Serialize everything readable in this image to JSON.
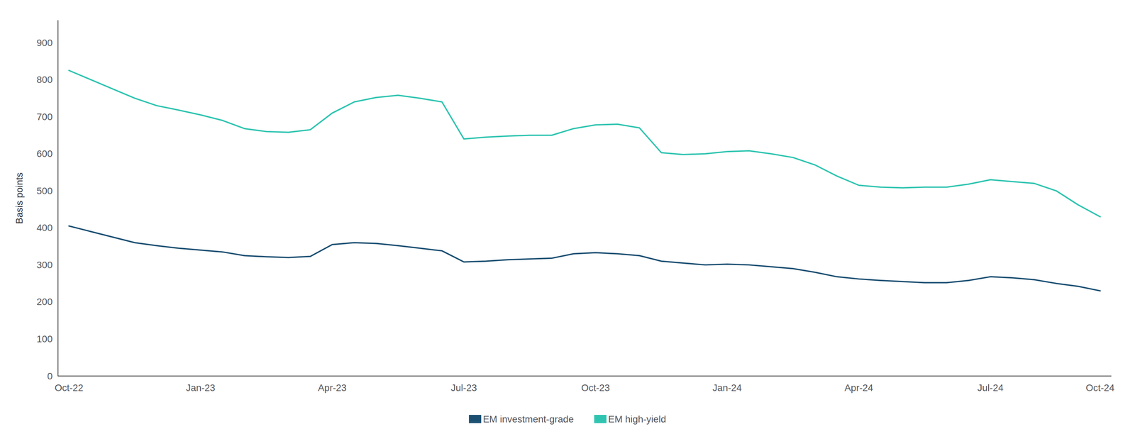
{
  "chart_data": {
    "type": "line",
    "ylabel": "Basis points",
    "categories": [
      "Oct-22",
      null,
      null,
      null,
      null,
      null,
      "Jan-23",
      null,
      null,
      null,
      null,
      null,
      "Apr-23",
      null,
      null,
      null,
      null,
      null,
      "Jul-23",
      null,
      null,
      null,
      null,
      null,
      "Oct-23",
      null,
      null,
      null,
      null,
      null,
      "Jan-24",
      null,
      null,
      null,
      null,
      null,
      "Apr-24",
      null,
      null,
      null,
      null,
      null,
      "Jul-24",
      null,
      null,
      null,
      null,
      "Oct-24"
    ],
    "series": [
      {
        "name": "EM investment-grade",
        "color": "#1b4f72",
        "values": [
          405,
          390,
          375,
          360,
          352,
          345,
          340,
          335,
          325,
          322,
          320,
          323,
          355,
          360,
          358,
          352,
          345,
          338,
          308,
          310,
          314,
          316,
          318,
          330,
          333,
          330,
          325,
          310,
          305,
          300,
          302,
          300,
          295,
          290,
          280,
          268,
          262,
          258,
          255,
          252,
          252,
          258,
          268,
          265,
          260,
          250,
          242,
          230
        ]
      },
      {
        "name": "EM high-yield",
        "color": "#2ec4b0",
        "values": [
          825,
          800,
          775,
          750,
          730,
          718,
          705,
          690,
          668,
          660,
          658,
          665,
          710,
          740,
          752,
          758,
          750,
          740,
          640,
          645,
          648,
          650,
          650,
          668,
          678,
          680,
          670,
          603,
          598,
          600,
          606,
          608,
          600,
          590,
          570,
          540,
          515,
          510,
          508,
          510,
          510,
          518,
          530,
          525,
          520,
          500,
          462,
          430
        ]
      }
    ],
    "ylim": [
      0,
      960
    ],
    "yticks": [
      0,
      100,
      200,
      300,
      400,
      500,
      600,
      700,
      800,
      900
    ],
    "grid": false,
    "legend": "bottom"
  }
}
